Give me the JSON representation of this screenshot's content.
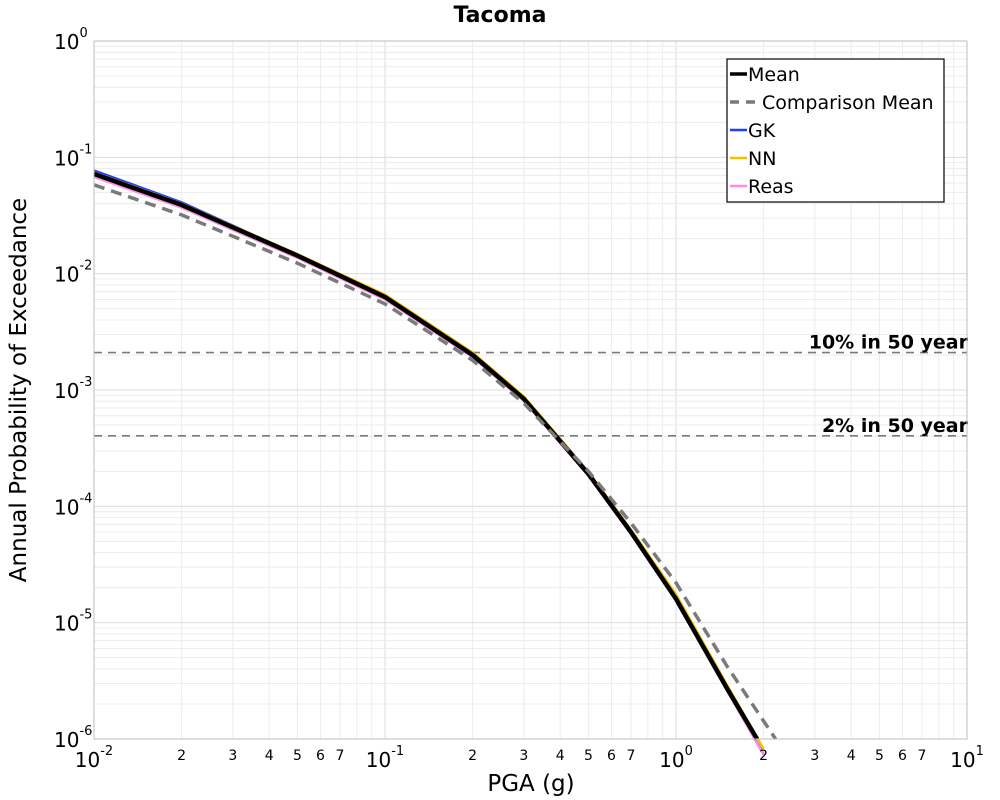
{
  "chart_data": {
    "type": "line",
    "title": "Tacoma",
    "xlabel": "PGA (g)",
    "ylabel": "Annual Probability of Exceedance",
    "x_scale": "log",
    "y_scale": "log",
    "xlim": [
      0.01,
      10
    ],
    "ylim": [
      1e-06,
      1
    ],
    "grid": true,
    "legend_position": "top-right",
    "x_major_ticks": [
      {
        "value": 0.01,
        "base": "10",
        "exp": "-2"
      },
      {
        "value": 0.1,
        "base": "10",
        "exp": "-1"
      },
      {
        "value": 1,
        "base": "10",
        "exp": "0"
      },
      {
        "value": 10,
        "base": "10",
        "exp": "1"
      }
    ],
    "x_minor_tick_labels": [
      "2",
      "3",
      "4",
      "5",
      "6",
      "7"
    ],
    "y_major_ticks": [
      {
        "value": 1,
        "base": "10",
        "exp": "0"
      },
      {
        "value": 0.1,
        "base": "10",
        "exp": "-1"
      },
      {
        "value": 0.01,
        "base": "10",
        "exp": "-2"
      },
      {
        "value": 0.001,
        "base": "10",
        "exp": "-3"
      },
      {
        "value": 0.0001,
        "base": "10",
        "exp": "-4"
      },
      {
        "value": 1e-05,
        "base": "10",
        "exp": "-5"
      },
      {
        "value": 1e-06,
        "base": "10",
        "exp": "-6"
      }
    ],
    "reference_lines": [
      {
        "label": "10% in 50 year",
        "y": 0.0021
      },
      {
        "label": "2% in 50 year",
        "y": 0.000404
      }
    ],
    "series": [
      {
        "name": "GK",
        "color": "#1f3fff",
        "dash": false,
        "width": 2.5,
        "x": [
          0.01,
          0.02,
          0.05,
          0.1,
          0.2,
          0.3,
          0.5,
          0.7,
          1.0,
          1.5,
          2.0
        ],
        "y": [
          0.077,
          0.041,
          0.0145,
          0.0063,
          0.00195,
          0.00082,
          0.000185,
          5.9e-05,
          1.6e-05,
          2.6e-06,
          7.4e-07
        ]
      },
      {
        "name": "NN",
        "color": "#f2c200",
        "dash": false,
        "width": 2.5,
        "x": [
          0.01,
          0.02,
          0.05,
          0.1,
          0.2,
          0.3,
          0.5,
          0.7,
          1.0,
          1.5,
          2.0
        ],
        "y": [
          0.074,
          0.04,
          0.0147,
          0.0066,
          0.0021,
          0.00088,
          0.000198,
          6.3e-05,
          1.75e-05,
          2.9e-06,
          8.2e-07
        ]
      },
      {
        "name": "Reas",
        "color": "#ff8ce0",
        "dash": false,
        "width": 2.5,
        "x": [
          0.01,
          0.02,
          0.05,
          0.1,
          0.2,
          0.3,
          0.5,
          0.7,
          1.0,
          1.5,
          2.0
        ],
        "y": [
          0.068,
          0.037,
          0.0137,
          0.006,
          0.00192,
          0.00081,
          0.000183,
          5.8e-05,
          1.58e-05,
          2.6e-06,
          7.3e-07
        ]
      },
      {
        "name": "Mean",
        "color": "#000000",
        "dash": false,
        "width": 4.5,
        "x": [
          0.01,
          0.02,
          0.05,
          0.1,
          0.2,
          0.3,
          0.5,
          0.7,
          1.0,
          1.5,
          1.9
        ],
        "y": [
          0.072,
          0.039,
          0.0143,
          0.0063,
          0.002,
          0.00084,
          0.00019,
          6e-05,
          1.6e-05,
          2.7e-06,
          1e-06
        ]
      },
      {
        "name": "Comparison Mean",
        "color": "#7a7a7a",
        "dash": true,
        "width": 3.5,
        "x": [
          0.01,
          0.02,
          0.05,
          0.1,
          0.2,
          0.3,
          0.5,
          0.7,
          1.0,
          1.5,
          2.2
        ],
        "y": [
          0.058,
          0.032,
          0.0123,
          0.0055,
          0.0018,
          0.00077,
          0.0002,
          7.2e-05,
          2.2e-05,
          4.2e-06,
          1e-06
        ]
      }
    ],
    "legend_order": [
      "Mean",
      "Comparison Mean",
      "GK",
      "NN",
      "Reas"
    ]
  }
}
